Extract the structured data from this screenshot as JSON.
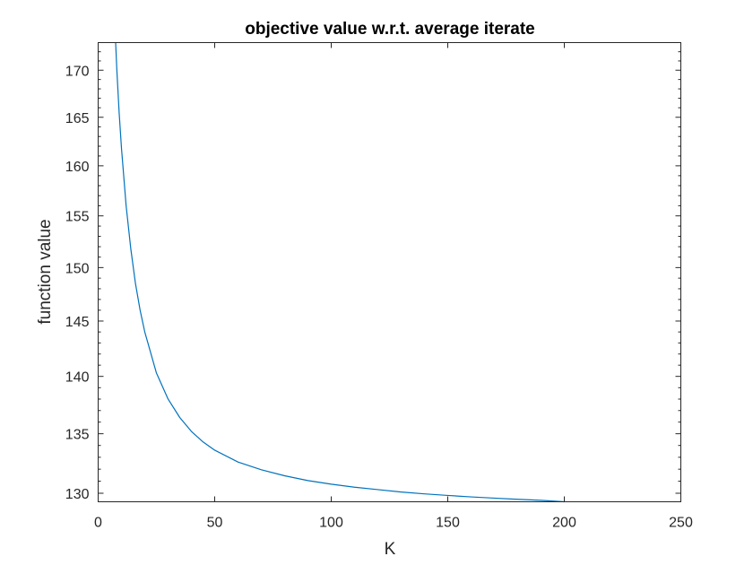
{
  "chart_data": {
    "type": "line",
    "title": "objective value w.r.t. average iterate",
    "xlabel": "K",
    "ylabel": "function value",
    "xlim": [
      0,
      250
    ],
    "ylim": [
      129.3,
      173
    ],
    "yscale": "log",
    "xticks": [
      0,
      50,
      100,
      150,
      200,
      250
    ],
    "yticks": [
      130,
      135,
      140,
      145,
      150,
      155,
      160,
      165,
      170
    ],
    "grid": false,
    "legend": "none",
    "series": [
      {
        "color": "#0072BD",
        "x": [
          7.5,
          8,
          9,
          10,
          12,
          14,
          16,
          18,
          20,
          25,
          30,
          35,
          40,
          45,
          50,
          60,
          70,
          80,
          90,
          100,
          110,
          120,
          130,
          140,
          150,
          160,
          170,
          180,
          190,
          200
        ],
        "y": [
          173,
          170.1,
          165.5,
          161.8,
          156.0,
          151.8,
          148.5,
          146.0,
          144.0,
          140.3,
          138.0,
          136.4,
          135.2,
          134.3,
          133.6,
          132.6,
          131.95,
          131.45,
          131.05,
          130.75,
          130.5,
          130.3,
          130.1,
          129.95,
          129.82,
          129.7,
          129.6,
          129.5,
          129.42,
          129.3
        ]
      }
    ]
  }
}
